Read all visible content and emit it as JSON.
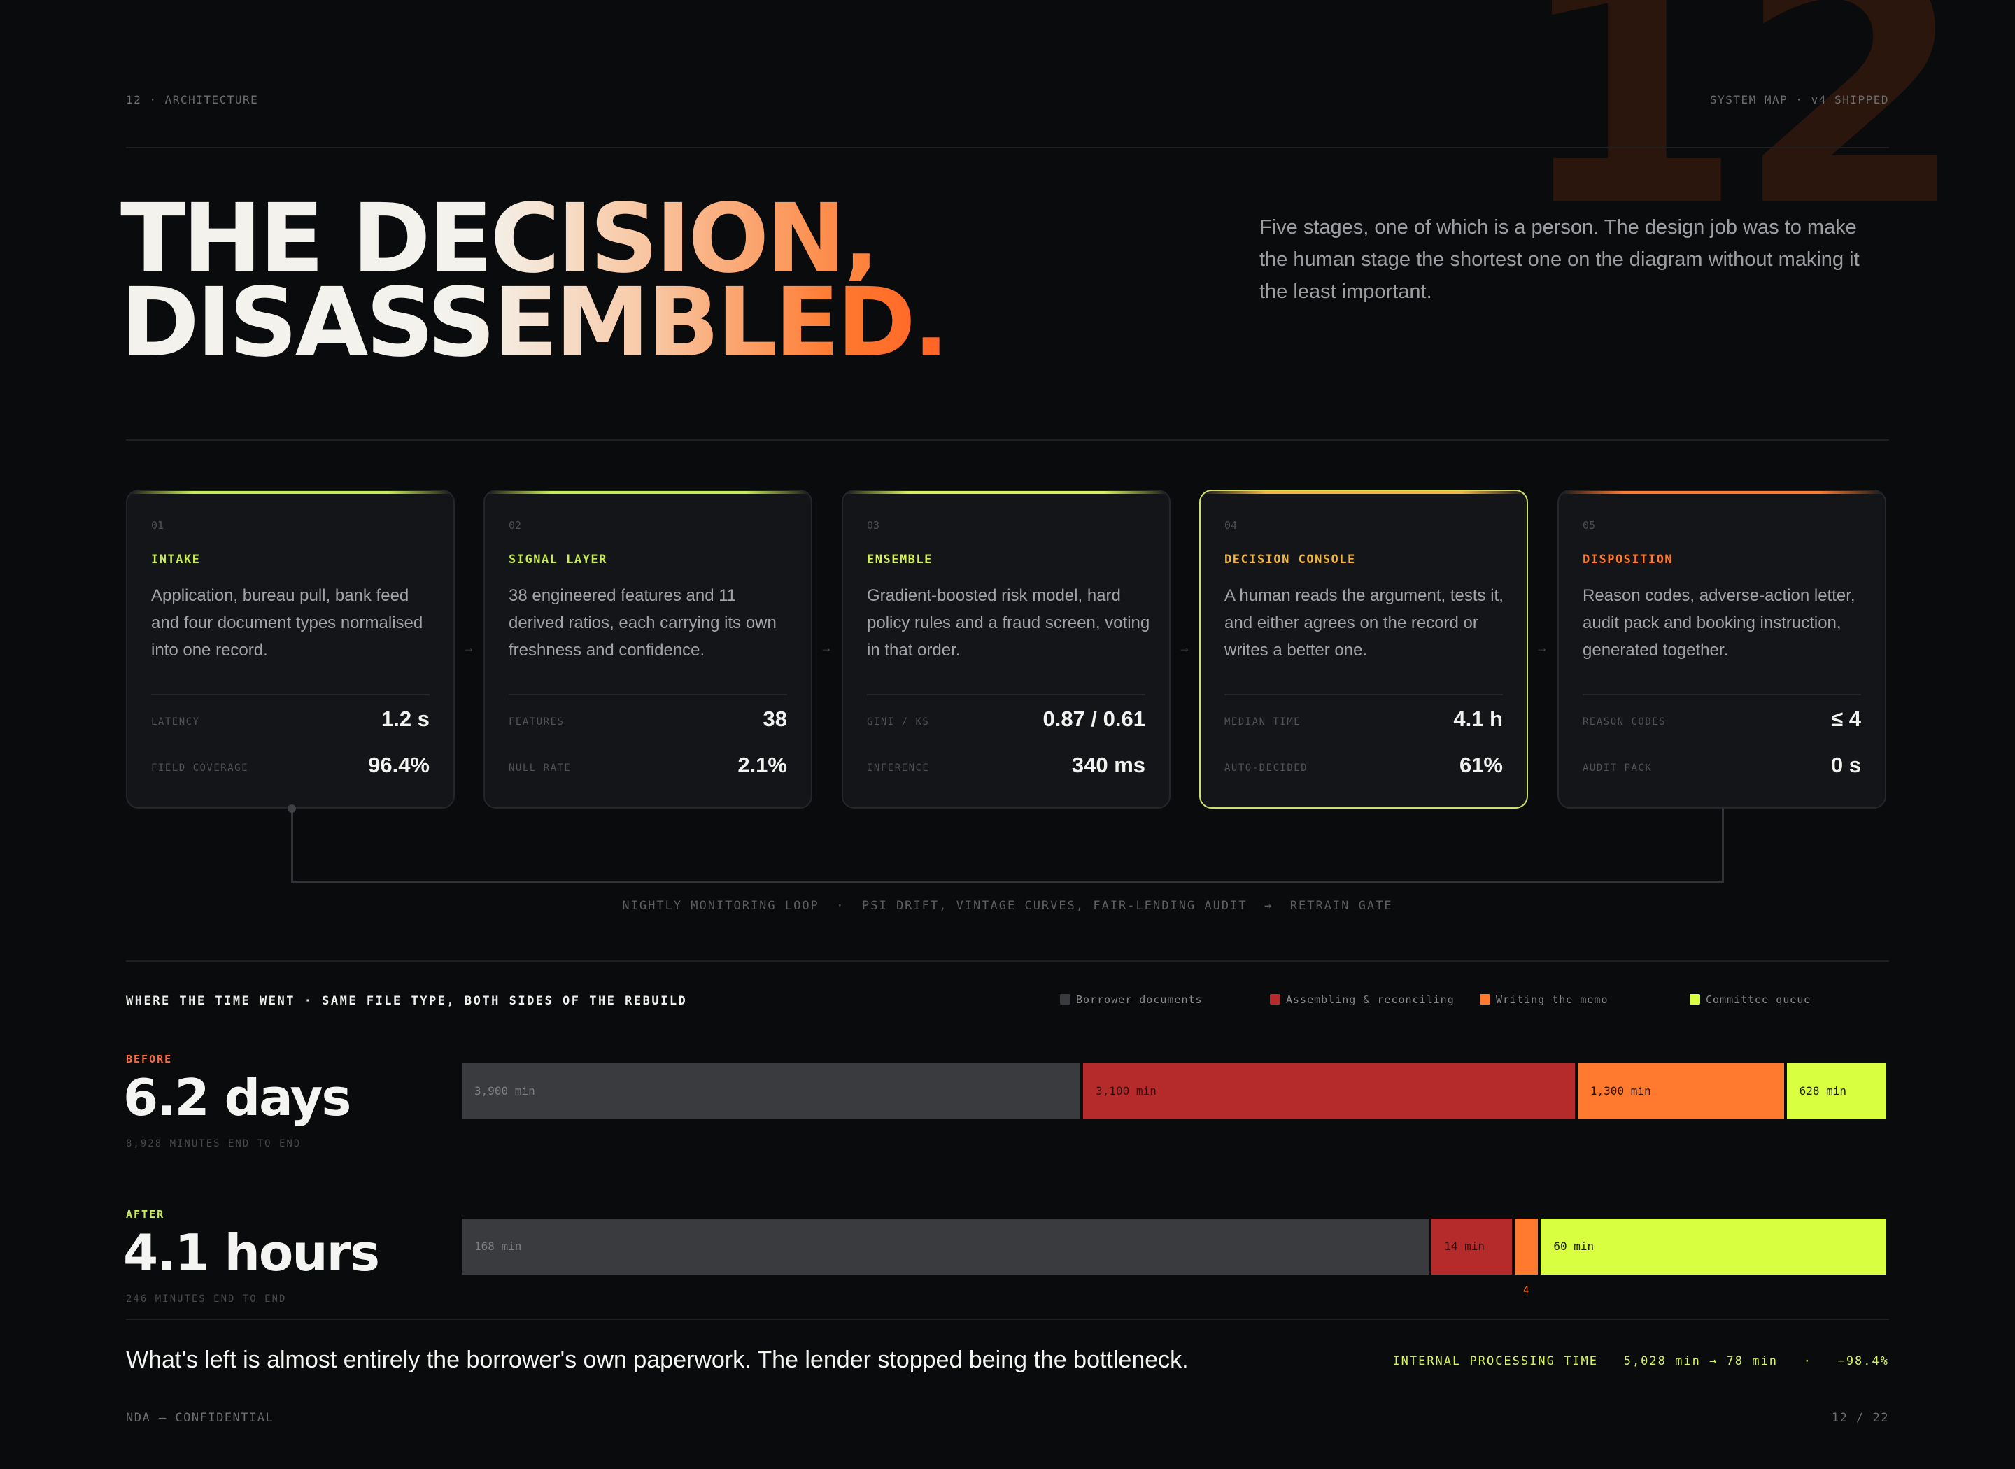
{
  "header": {
    "section_label": "12 · ARCHITECTURE",
    "status_label": "SYSTEM MAP · v4 SHIPPED",
    "big_number": "12"
  },
  "headline": {
    "line1": "THE DECISION,",
    "line2": "DISASSEMBLED."
  },
  "intro": "Five stages, one of which is a person. The design job was to make the human stage the shortest one on the diagram without making it the least important.",
  "stages": [
    {
      "num": "01",
      "title": "INTAKE",
      "color": "#c8ea54",
      "desc": "Application, bureau pull, bank feed and four document types normalised into one record.",
      "m1_label": "LATENCY",
      "m1_value": "1.2 s",
      "m2_label": "FIELD COVERAGE",
      "m2_value": "96.4%"
    },
    {
      "num": "02",
      "title": "SIGNAL LAYER",
      "color": "#c8ea54",
      "desc": "38 engineered features and 11 derived ratios, each carrying its own freshness and confidence.",
      "m1_label": "FEATURES",
      "m1_value": "38",
      "m2_label": "NULL RATE",
      "m2_value": "2.1%"
    },
    {
      "num": "03",
      "title": "ENSEMBLE",
      "color": "#d8f05a",
      "desc": "Gradient-boosted risk model, hard policy rules and a fraud screen, voting in that order.",
      "m1_label": "GINI / KS",
      "m1_value": "0.87 / 0.61",
      "m2_label": "INFERENCE",
      "m2_value": "340 ms"
    },
    {
      "num": "04",
      "title": "DECISION CONSOLE",
      "color": "#f2b640",
      "desc": "A human reads the argument, tests it, and either agrees on the record or writes a better one.",
      "m1_label": "MEDIAN TIME",
      "m1_value": "4.1 h",
      "m2_label": "AUTO-DECIDED",
      "m2_value": "61%"
    },
    {
      "num": "05",
      "title": "DISPOSITION",
      "color": "#ff7a2e",
      "desc": "Reason codes, adverse-action letter, audit pack and booking instruction, generated together.",
      "m1_label": "REASON CODES",
      "m1_value": "≤ 4",
      "m2_label": "AUDIT PACK",
      "m2_value": "0 s"
    }
  ],
  "loop_caption": "NIGHTLY MONITORING LOOP  ·  PSI DRIFT, VINTAGE CURVES, FAIR-LENDING AUDIT  →  RETRAIN GATE",
  "chart_data": {
    "type": "bar",
    "title": "WHERE THE TIME WENT · SAME FILE TYPE, BOTH SIDES OF THE REBUILD",
    "stacked": true,
    "orientation": "horizontal",
    "unit": "min",
    "categories": [
      "BEFORE",
      "AFTER"
    ],
    "legend_position": "top-right",
    "series": [
      {
        "name": "Borrower documents",
        "color": "#3a3b3f",
        "values": [
          3900,
          168
        ],
        "labels": [
          "3,900 min",
          "168 min"
        ]
      },
      {
        "name": "Assembling & reconciling",
        "color": "#b52b2b",
        "values": [
          3100,
          14
        ],
        "labels": [
          "3,100 min",
          "14 min"
        ]
      },
      {
        "name": "Writing the memo",
        "color": "#ff7a2e",
        "values": [
          1300,
          4
        ],
        "labels": [
          "1,300 min",
          "4"
        ]
      },
      {
        "name": "Committee queue",
        "color": "#d8ff40",
        "values": [
          628,
          60
        ],
        "labels": [
          "628 min",
          "60 min"
        ]
      }
    ]
  },
  "rows": [
    {
      "tag": "BEFORE",
      "tag_color": "#ff6a3a",
      "big": "6.2 days",
      "sub": "8,928 MINUTES END TO END"
    },
    {
      "tag": "AFTER",
      "tag_color": "#c8ea54",
      "big": "4.1 hours",
      "sub": "246 MINUTES END TO END"
    }
  ],
  "summary": "What's left is almost entirely the borrower's own paperwork. The lender stopped being the bottleneck.",
  "metric": "INTERNAL PROCESSING TIME   5,028 min → 78 min   ·   −98.4%",
  "footer": {
    "left": "NDA — CONFIDENTIAL",
    "right": "12 / 22"
  }
}
